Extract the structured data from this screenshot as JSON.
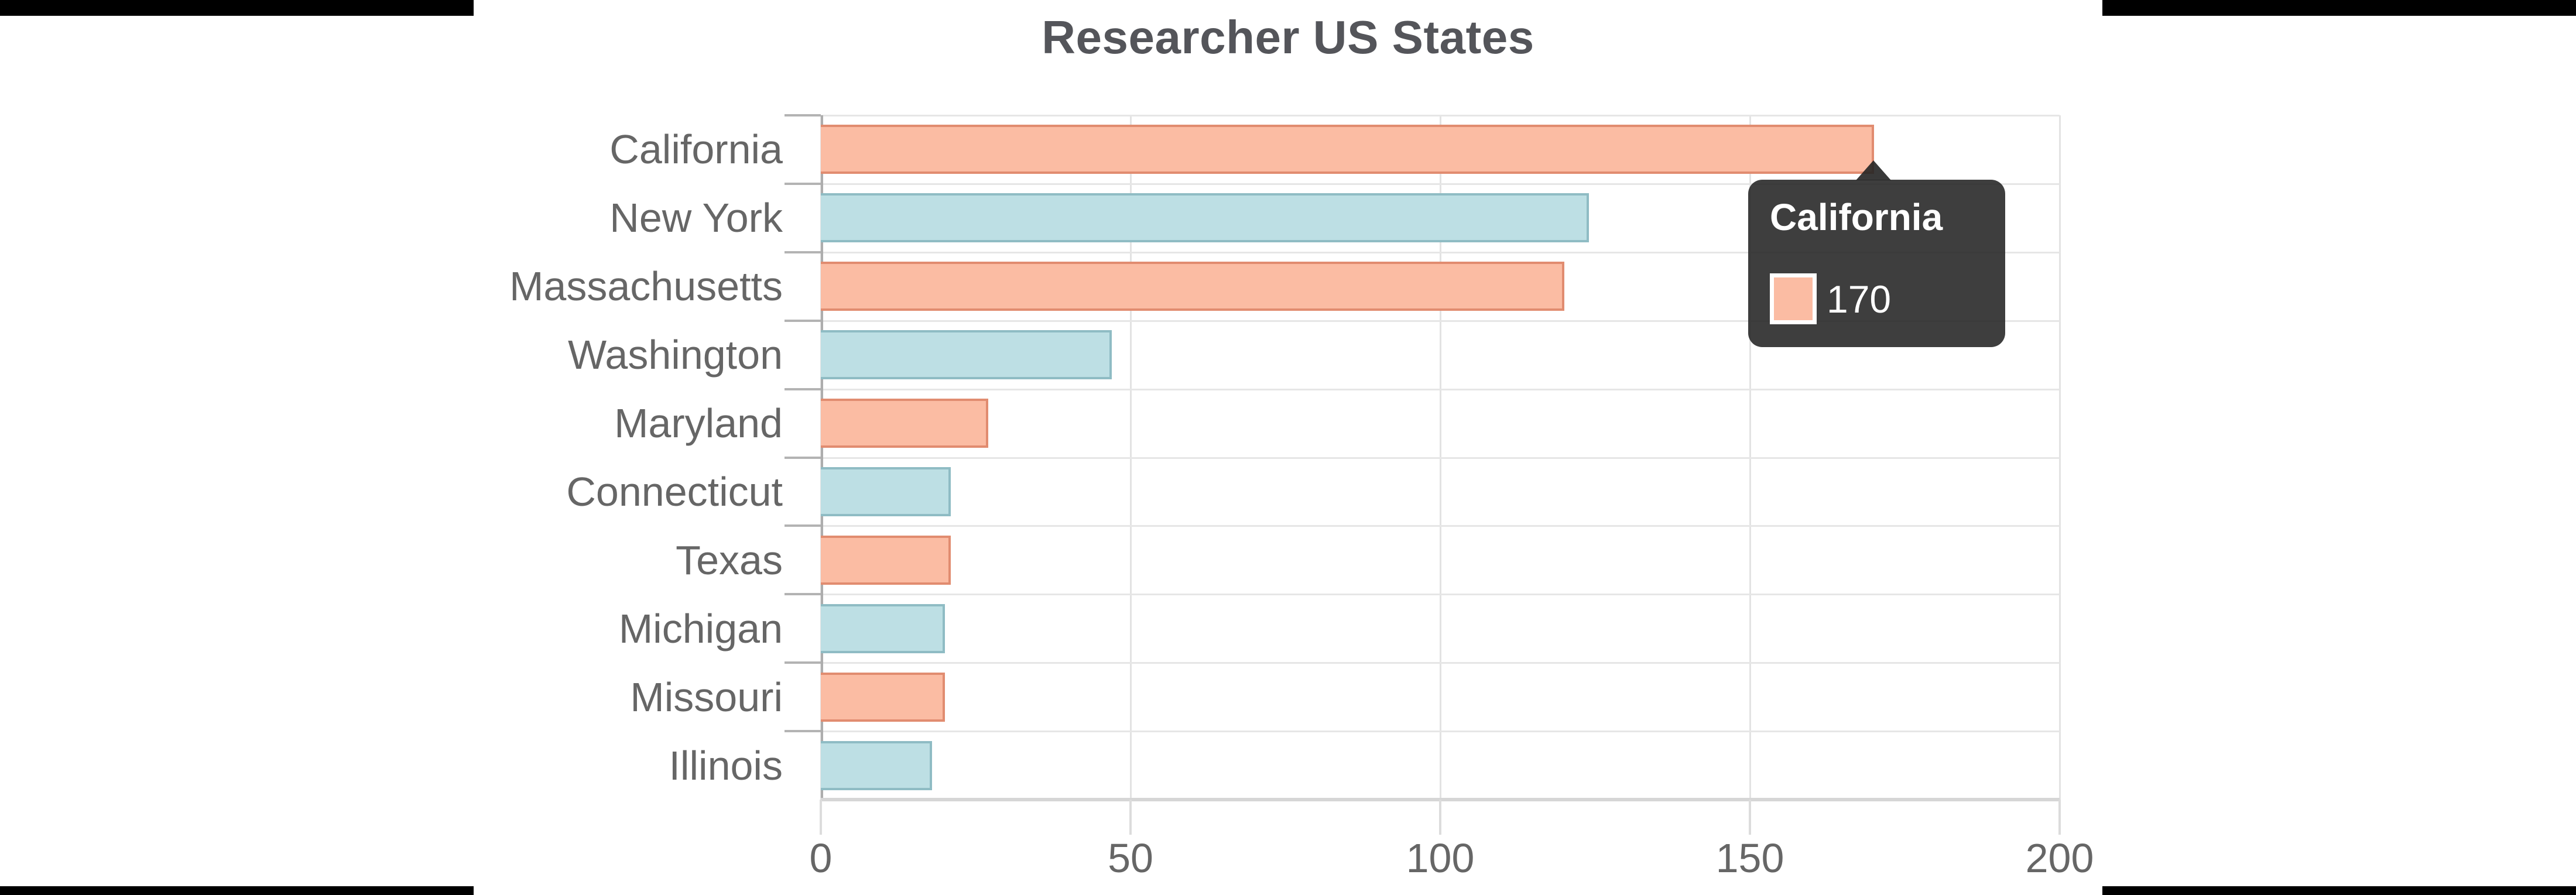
{
  "letterbox": {
    "color": "#000000"
  },
  "card": {
    "background": "#ffffff"
  },
  "chart_data": {
    "type": "bar",
    "orientation": "horizontal",
    "title": "Researcher US States",
    "categories": [
      "California",
      "New York",
      "Massachusetts",
      "Washington",
      "Maryland",
      "Connecticut",
      "Texas",
      "Michigan",
      "Missouri",
      "Illinois"
    ],
    "values": [
      170,
      124,
      120,
      47,
      27,
      21,
      21,
      20,
      20,
      18
    ],
    "xlabel": "",
    "ylabel": "",
    "xlim": [
      0,
      200
    ],
    "x_ticks": [
      "0",
      "50",
      "100",
      "150",
      "200"
    ],
    "x_tick_values": [
      0,
      50,
      100,
      150,
      200
    ],
    "grid": true,
    "legend": false,
    "bar_style": {
      "alternating_colors": [
        {
          "fill": "#FBBCA3",
          "border": "#E18C70"
        },
        {
          "fill": "#BDDFE4",
          "border": "#8FBCC4"
        }
      ]
    }
  },
  "tooltip": {
    "title": "California",
    "value": "170",
    "swatch_fill": "#FBBCA3",
    "background": "rgba(35,35,35,0.88)"
  },
  "style": {
    "title_color": "#54555A",
    "label_color": "#666666",
    "grid_color": "#E5E5E5",
    "axis_color": "#D6D6D6",
    "tick_color": "#B3B3B3"
  }
}
